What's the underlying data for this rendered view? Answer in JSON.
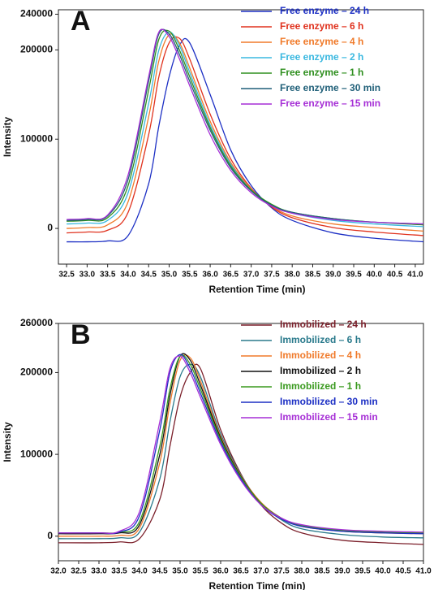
{
  "chart_data": [
    {
      "type": "line",
      "panel_label": "A",
      "ylabel": "Intensity",
      "xlabel": "Retention Time (min)",
      "legend": "upper right",
      "x": [
        32.5,
        33,
        33.5,
        34,
        34.5,
        34.75,
        35,
        35.25,
        35.5,
        36,
        36.5,
        37,
        37.5,
        38,
        39,
        40,
        41.2
      ],
      "xlim": [
        32.3,
        41.2
      ],
      "xticks": [
        32.5,
        {
          "value": 33,
          "label": "33.0"
        },
        33.5,
        {
          "value": 34,
          "label": "34.0"
        },
        34.5,
        {
          "value": 35,
          "label": "35.0"
        },
        35.5,
        {
          "value": 36,
          "label": "36.0"
        },
        36.5,
        {
          "value": 37,
          "label": "37.0"
        },
        37.5,
        {
          "value": 38,
          "label": "38.0"
        },
        38.5,
        {
          "value": 39,
          "label": "39.0"
        },
        39.5,
        {
          "value": 40,
          "label": "40.0"
        },
        40.5,
        {
          "value": 41,
          "label": "41.0"
        }
      ],
      "ylim": [
        -40000,
        245000
      ],
      "yticks": [
        0,
        100000,
        200000,
        240000
      ],
      "series": [
        {
          "name": "Free enzyme – 24 h",
          "color": "#1c2fc4",
          "values": [
            -15000,
            -15000,
            -14000,
            -8000,
            50000,
            115000,
            170000,
            205000,
            208000,
            150000,
            88000,
            48000,
            23000,
            9000,
            -5000,
            -11000,
            -15000
          ]
        },
        {
          "name": "Free enzyme – 6 h",
          "color": "#e0321e",
          "values": [
            -5000,
            -4000,
            -2000,
            18000,
            105000,
            170000,
            208000,
            213000,
            190000,
            128000,
            78000,
            45000,
            24000,
            12000,
            1000,
            -4000,
            -8000
          ]
        },
        {
          "name": "Free enzyme – 4 h",
          "color": "#f07a2a",
          "values": [
            0,
            1000,
            4000,
            30000,
            125000,
            188000,
            217000,
            208000,
            180000,
            120000,
            74000,
            44000,
            25000,
            14000,
            5000,
            1000,
            -3000
          ]
        },
        {
          "name": "Free enzyme – 2 h",
          "color": "#3ab8e0",
          "values": [
            5000,
            6000,
            9000,
            40000,
            140000,
            200000,
            220000,
            205000,
            175000,
            116000,
            72000,
            43000,
            26000,
            17000,
            9000,
            5000,
            2000
          ]
        },
        {
          "name": "Free enzyme – 1 h",
          "color": "#2f8f1f",
          "values": [
            8000,
            9000,
            12000,
            48000,
            155000,
            212000,
            221000,
            200000,
            170000,
            113000,
            70000,
            43000,
            27000,
            18000,
            11000,
            7000,
            4000
          ]
        },
        {
          "name": "Free enzyme – 30 min",
          "color": "#1f5f78",
          "values": [
            9000,
            10000,
            14000,
            55000,
            165000,
            218000,
            218000,
            195000,
            165000,
            110000,
            68000,
            42000,
            26000,
            18000,
            11000,
            7000,
            5000
          ]
        },
        {
          "name": "Free enzyme – 15 min",
          "color": "#a62fd6",
          "values": [
            10000,
            11000,
            15000,
            60000,
            170000,
            220000,
            215000,
            190000,
            160000,
            105000,
            65000,
            40000,
            25000,
            17000,
            10000,
            7000,
            5000
          ]
        }
      ]
    },
    {
      "type": "line",
      "panel_label": "B",
      "ylabel": "Intensity",
      "xlabel": "Retention Time (min)",
      "legend": "upper right",
      "x": [
        32,
        33,
        33.5,
        34,
        34.5,
        34.75,
        35,
        35.25,
        35.5,
        36,
        36.5,
        37,
        37.5,
        38,
        39,
        40,
        41
      ],
      "xlim": [
        32,
        41
      ],
      "xticks": [
        {
          "value": 32,
          "label": "32.0"
        },
        32.5,
        {
          "value": 33,
          "label": "33.0"
        },
        33.5,
        {
          "value": 34,
          "label": "34.0"
        },
        34.5,
        {
          "value": 35,
          "label": "35.0"
        },
        35.5,
        {
          "value": 36,
          "label": "36.0"
        },
        36.5,
        {
          "value": 37,
          "label": "37.0"
        },
        37.5,
        {
          "value": 38,
          "label": "38.0"
        },
        38.5,
        {
          "value": 39,
          "label": "39.0"
        },
        39.5,
        {
          "value": 40,
          "label": "40.0"
        },
        40.5,
        {
          "value": 41,
          "label": "41.0"
        }
      ],
      "ylim": [
        -30000,
        260000
      ],
      "yticks": [
        0,
        100000,
        200000,
        260000
      ],
      "series": [
        {
          "name": "Immobilized – 24 h",
          "color": "#7b1f2a",
          "values": [
            -8000,
            -8000,
            -7000,
            -3000,
            45000,
            110000,
            170000,
            200000,
            205000,
            130000,
            76000,
            38000,
            16000,
            4000,
            -5000,
            -8000,
            -10000
          ]
        },
        {
          "name": "Immobilized – 6 h",
          "color": "#2a7a8c",
          "values": [
            -3000,
            -3000,
            -2000,
            5000,
            70000,
            140000,
            195000,
            210000,
            195000,
            125000,
            75000,
            40000,
            20000,
            9000,
            2000,
            -1000,
            -2000
          ]
        },
        {
          "name": "Immobilized – 4 h",
          "color": "#f07a2a",
          "values": [
            0,
            0,
            1000,
            10000,
            90000,
            162000,
            215000,
            218000,
            190000,
            122000,
            74000,
            41000,
            22000,
            12000,
            6000,
            4000,
            3000
          ]
        },
        {
          "name": "Immobilized – 2 h",
          "color": "#111111",
          "values": [
            3000,
            3000,
            4000,
            14000,
            100000,
            172000,
            220000,
            215000,
            185000,
            120000,
            73000,
            40000,
            22000,
            13000,
            7000,
            5000,
            4000
          ]
        },
        {
          "name": "Immobilized – 1 h",
          "color": "#3a9a1f",
          "values": [
            4000,
            4000,
            5000,
            18000,
            110000,
            180000,
            220000,
            210000,
            180000,
            118000,
            72000,
            40000,
            22000,
            13000,
            7000,
            5000,
            4000
          ]
        },
        {
          "name": "Immobilized – 30 min",
          "color": "#1c2fc4",
          "values": [
            4000,
            4000,
            5000,
            25000,
            130000,
            200000,
            222000,
            205000,
            175000,
            115000,
            70000,
            38000,
            21000,
            12000,
            6000,
            4000,
            3000
          ]
        },
        {
          "name": "Immobilized – 15 min",
          "color": "#a62fd6",
          "values": [
            4000,
            4000,
            6000,
            30000,
            140000,
            205000,
            220000,
            200000,
            170000,
            112000,
            68000,
            38000,
            22000,
            14000,
            8000,
            6000,
            5000
          ]
        }
      ]
    }
  ]
}
